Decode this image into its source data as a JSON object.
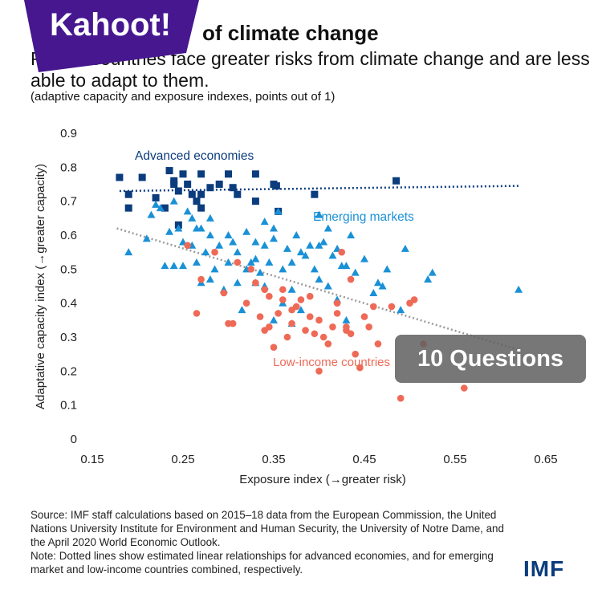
{
  "header": {
    "title": "of climate change",
    "subtitle": "Poorer countries face greater risks from climate change and are less able to adapt to them.",
    "note": "(adaptive capacity and exposure indexes, points out of 1)"
  },
  "overlay": {
    "brand": "Kahoot!",
    "questions": "10 Questions",
    "brand_color": "#46178f"
  },
  "footer": {
    "source": "Source: IMF staff calculations based on 2015–18 data from the European Commission, the United Nations University Institute for Environment and Human Security, the University of Notre Dame, and the April 2020 World Economic Outlook.",
    "note": "Note: Dotted lines show estimated linear relationships for advanced economies, and for emerging market and low-income countries combined, respectively.",
    "logo": "IMF"
  },
  "chart_data": {
    "type": "scatter",
    "xlabel": "Exposure index (→greater risk)",
    "ylabel": "Adaptative capacity index (→greater capacity)",
    "xlim": [
      0.15,
      0.65
    ],
    "ylim": [
      0,
      0.9
    ],
    "xticks": [
      "0.15",
      "0.25",
      "0.35",
      "0.45",
      "0.55",
      "0.65"
    ],
    "yticks": [
      "0",
      "0.1",
      "0.2",
      "0.3",
      "0.4",
      "0.5",
      "0.6",
      "0.7",
      "0.8",
      "0.9"
    ],
    "grid": false,
    "series": [
      {
        "name": "Advanced economies",
        "marker": "square",
        "color": "#0b3c7d",
        "points": [
          [
            0.18,
            0.77
          ],
          [
            0.19,
            0.72
          ],
          [
            0.19,
            0.68
          ],
          [
            0.205,
            0.77
          ],
          [
            0.22,
            0.71
          ],
          [
            0.235,
            0.79
          ],
          [
            0.23,
            0.68
          ],
          [
            0.24,
            0.75
          ],
          [
            0.24,
            0.76
          ],
          [
            0.245,
            0.73
          ],
          [
            0.245,
            0.63
          ],
          [
            0.25,
            0.78
          ],
          [
            0.255,
            0.75
          ],
          [
            0.26,
            0.72
          ],
          [
            0.265,
            0.7
          ],
          [
            0.27,
            0.78
          ],
          [
            0.27,
            0.72
          ],
          [
            0.27,
            0.68
          ],
          [
            0.28,
            0.74
          ],
          [
            0.29,
            0.75
          ],
          [
            0.3,
            0.78
          ],
          [
            0.305,
            0.74
          ],
          [
            0.31,
            0.72
          ],
          [
            0.33,
            0.78
          ],
          [
            0.33,
            0.7
          ],
          [
            0.35,
            0.75
          ],
          [
            0.353,
            0.745
          ],
          [
            0.355,
            0.67
          ],
          [
            0.395,
            0.72
          ],
          [
            0.485,
            0.76
          ]
        ],
        "trend": [
          [
            0.18,
            0.73
          ],
          [
            0.62,
            0.745
          ]
        ]
      },
      {
        "name": "Emerging markets",
        "marker": "triangle",
        "color": "#1a91d6",
        "points": [
          [
            0.19,
            0.55
          ],
          [
            0.21,
            0.59
          ],
          [
            0.215,
            0.66
          ],
          [
            0.22,
            0.69
          ],
          [
            0.225,
            0.68
          ],
          [
            0.23,
            0.51
          ],
          [
            0.235,
            0.61
          ],
          [
            0.24,
            0.51
          ],
          [
            0.24,
            0.7
          ],
          [
            0.245,
            0.62
          ],
          [
            0.25,
            0.51
          ],
          [
            0.25,
            0.58
          ],
          [
            0.255,
            0.67
          ],
          [
            0.26,
            0.57
          ],
          [
            0.265,
            0.62
          ],
          [
            0.265,
            0.52
          ],
          [
            0.27,
            0.62
          ],
          [
            0.27,
            0.46
          ],
          [
            0.275,
            0.55
          ],
          [
            0.28,
            0.65
          ],
          [
            0.28,
            0.6
          ],
          [
            0.285,
            0.5
          ],
          [
            0.29,
            0.57
          ],
          [
            0.295,
            0.44
          ],
          [
            0.3,
            0.52
          ],
          [
            0.3,
            0.6
          ],
          [
            0.305,
            0.58
          ],
          [
            0.31,
            0.46
          ],
          [
            0.31,
            0.55
          ],
          [
            0.315,
            0.38
          ],
          [
            0.32,
            0.5
          ],
          [
            0.32,
            0.61
          ],
          [
            0.325,
            0.52
          ],
          [
            0.33,
            0.53
          ],
          [
            0.33,
            0.46
          ],
          [
            0.335,
            0.49
          ],
          [
            0.34,
            0.45
          ],
          [
            0.34,
            0.57
          ],
          [
            0.345,
            0.52
          ],
          [
            0.35,
            0.62
          ],
          [
            0.35,
            0.59
          ],
          [
            0.355,
            0.67
          ],
          [
            0.36,
            0.5
          ],
          [
            0.36,
            0.4
          ],
          [
            0.365,
            0.56
          ],
          [
            0.37,
            0.52
          ],
          [
            0.37,
            0.44
          ],
          [
            0.375,
            0.6
          ],
          [
            0.38,
            0.55
          ],
          [
            0.38,
            0.38
          ],
          [
            0.385,
            0.54
          ],
          [
            0.39,
            0.57
          ],
          [
            0.395,
            0.5
          ],
          [
            0.4,
            0.66
          ],
          [
            0.4,
            0.47
          ],
          [
            0.4,
            0.57
          ],
          [
            0.405,
            0.58
          ],
          [
            0.41,
            0.45
          ],
          [
            0.41,
            0.62
          ],
          [
            0.415,
            0.54
          ],
          [
            0.42,
            0.41
          ],
          [
            0.42,
            0.56
          ],
          [
            0.425,
            0.51
          ],
          [
            0.43,
            0.51
          ],
          [
            0.435,
            0.6
          ],
          [
            0.44,
            0.49
          ],
          [
            0.45,
            0.53
          ],
          [
            0.46,
            0.43
          ],
          [
            0.465,
            0.46
          ],
          [
            0.47,
            0.45
          ],
          [
            0.475,
            0.5
          ],
          [
            0.49,
            0.38
          ],
          [
            0.495,
            0.56
          ],
          [
            0.52,
            0.47
          ],
          [
            0.525,
            0.49
          ],
          [
            0.62,
            0.44
          ],
          [
            0.26,
            0.65
          ],
          [
            0.28,
            0.47
          ],
          [
            0.35,
            0.35
          ],
          [
            0.37,
            0.34
          ],
          [
            0.33,
            0.58
          ],
          [
            0.34,
            0.64
          ],
          [
            0.43,
            0.35
          ]
        ]
      },
      {
        "name": "Low-income countries",
        "marker": "circle",
        "color": "#ee6a57",
        "points": [
          [
            0.255,
            0.57
          ],
          [
            0.265,
            0.37
          ],
          [
            0.27,
            0.47
          ],
          [
            0.285,
            0.55
          ],
          [
            0.295,
            0.43
          ],
          [
            0.3,
            0.34
          ],
          [
            0.305,
            0.34
          ],
          [
            0.31,
            0.52
          ],
          [
            0.32,
            0.4
          ],
          [
            0.325,
            0.5
          ],
          [
            0.33,
            0.46
          ],
          [
            0.335,
            0.36
          ],
          [
            0.34,
            0.32
          ],
          [
            0.34,
            0.44
          ],
          [
            0.345,
            0.33
          ],
          [
            0.35,
            0.27
          ],
          [
            0.355,
            0.37
          ],
          [
            0.36,
            0.41
          ],
          [
            0.365,
            0.3
          ],
          [
            0.37,
            0.34
          ],
          [
            0.37,
            0.38
          ],
          [
            0.375,
            0.39
          ],
          [
            0.38,
            0.41
          ],
          [
            0.385,
            0.32
          ],
          [
            0.39,
            0.36
          ],
          [
            0.39,
            0.42
          ],
          [
            0.395,
            0.31
          ],
          [
            0.4,
            0.35
          ],
          [
            0.4,
            0.2
          ],
          [
            0.405,
            0.3
          ],
          [
            0.41,
            0.28
          ],
          [
            0.415,
            0.33
          ],
          [
            0.42,
            0.4
          ],
          [
            0.42,
            0.37
          ],
          [
            0.425,
            0.55
          ],
          [
            0.43,
            0.32
          ],
          [
            0.43,
            0.33
          ],
          [
            0.435,
            0.31
          ],
          [
            0.435,
            0.47
          ],
          [
            0.44,
            0.25
          ],
          [
            0.445,
            0.21
          ],
          [
            0.45,
            0.36
          ],
          [
            0.455,
            0.33
          ],
          [
            0.46,
            0.39
          ],
          [
            0.465,
            0.28
          ],
          [
            0.48,
            0.39
          ],
          [
            0.49,
            0.12
          ],
          [
            0.5,
            0.4
          ],
          [
            0.505,
            0.41
          ],
          [
            0.515,
            0.28
          ],
          [
            0.56,
            0.15
          ],
          [
            0.345,
            0.42
          ],
          [
            0.36,
            0.44
          ]
        ]
      }
    ],
    "combined_trend": {
      "label": "Emerging markets and low-income countries",
      "color": "#9a9a9a",
      "points": [
        [
          0.177,
          0.62
        ],
        [
          0.623,
          0.26
        ]
      ]
    }
  }
}
